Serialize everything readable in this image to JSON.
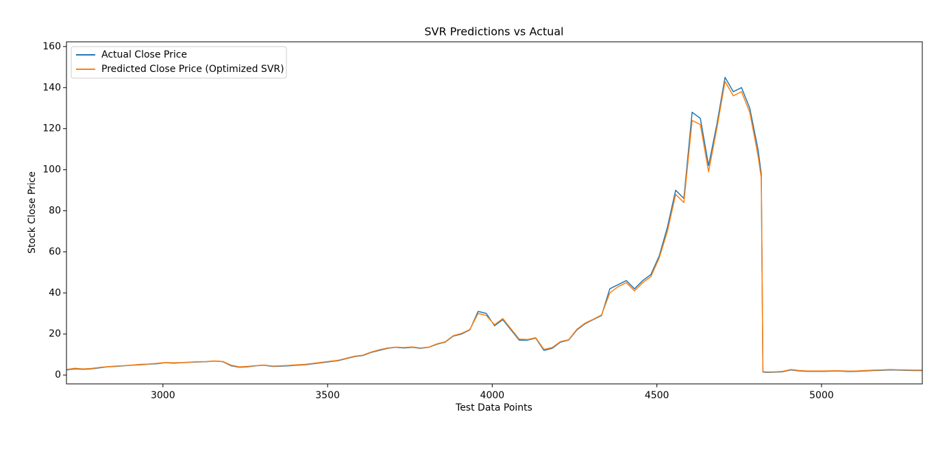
{
  "chart_data": {
    "type": "line",
    "title": "SVR Predictions vs Actual",
    "x_label": "Test Data Points",
    "y_label": "Stock Close Price",
    "xlim": [
      2707,
      5306
    ],
    "ylim": [
      -4.3,
      162.3
    ],
    "xticks": [
      3000,
      3500,
      4000,
      4500,
      5000
    ],
    "yticks": [
      0,
      20,
      40,
      60,
      80,
      100,
      120,
      140,
      160
    ],
    "legend": "upper left",
    "grid": false,
    "x": [
      2707,
      2732,
      2757,
      2782,
      2807,
      2832,
      2857,
      2882,
      2907,
      2932,
      2957,
      2982,
      3007,
      3032,
      3057,
      3082,
      3107,
      3132,
      3157,
      3182,
      3207,
      3232,
      3257,
      3282,
      3307,
      3332,
      3357,
      3382,
      3407,
      3432,
      3457,
      3482,
      3507,
      3532,
      3557,
      3582,
      3607,
      3632,
      3657,
      3682,
      3707,
      3732,
      3757,
      3782,
      3807,
      3832,
      3857,
      3882,
      3907,
      3932,
      3957,
      3982,
      4007,
      4032,
      4057,
      4082,
      4107,
      4132,
      4157,
      4182,
      4207,
      4232,
      4257,
      4282,
      4307,
      4332,
      4357,
      4382,
      4407,
      4432,
      4457,
      4482,
      4507,
      4532,
      4557,
      4582,
      4607,
      4632,
      4657,
      4682,
      4707,
      4732,
      4757,
      4782,
      4807,
      4817,
      4822,
      4832,
      4857,
      4882,
      4907,
      4932,
      4957,
      4982,
      5007,
      5032,
      5057,
      5082,
      5107,
      5132,
      5157,
      5182,
      5207,
      5232,
      5257,
      5282,
      5306
    ],
    "series": [
      {
        "name": "Actual Close Price",
        "color": "#1f77b4",
        "values": [
          2.5,
          3,
          2.8,
          3,
          3.5,
          4,
          4.2,
          4.5,
          4.8,
          5,
          5.3,
          5.5,
          6,
          5.8,
          6,
          6.2,
          6.4,
          6.5,
          6.8,
          6.5,
          4.5,
          3.8,
          4,
          4.5,
          4.8,
          4.2,
          4.3,
          4.5,
          4.8,
          5,
          5.5,
          6,
          6.5,
          7,
          8,
          9,
          9.5,
          11,
          12,
          13,
          13.5,
          13.2,
          13.5,
          13,
          13.5,
          15,
          16,
          19,
          20,
          22,
          31,
          30,
          24,
          27,
          22,
          17,
          17,
          18,
          12,
          13,
          16,
          17,
          22,
          25,
          27,
          29,
          42,
          44,
          46,
          42,
          46,
          49,
          58,
          72,
          90,
          86,
          128,
          125,
          102,
          122,
          145,
          138,
          140,
          130,
          110,
          98,
          1.5,
          1.3,
          1.4,
          1.6,
          2.5,
          2,
          1.8,
          1.8,
          1.8,
          1.9,
          1.9,
          1.7,
          1.8,
          2,
          2.2,
          2.3,
          2.5,
          2.4,
          2.3,
          2.2,
          2.2
        ]
      },
      {
        "name": "Predicted Close Price (Optimized SVR)",
        "color": "#ff7f0e",
        "values": [
          2.7,
          3.3,
          3,
          3.2,
          3.7,
          4.1,
          4.4,
          4.6,
          4.9,
          5.2,
          5.4,
          5.7,
          6.1,
          6,
          6.1,
          6.3,
          6.5,
          6.6,
          6.9,
          6.6,
          4.8,
          4,
          4.2,
          4.6,
          4.9,
          4.4,
          4.5,
          4.7,
          5,
          5.2,
          5.7,
          6.2,
          6.7,
          7.2,
          8.2,
          9.2,
          9.7,
          11.2,
          12.3,
          13.2,
          13.6,
          13.4,
          13.7,
          13.2,
          13.6,
          15.2,
          16.2,
          19.2,
          20.3,
          22.2,
          30,
          29,
          24.5,
          27.5,
          22.5,
          17.5,
          17.3,
          18.2,
          12.5,
          13.4,
          16.3,
          17.2,
          22.3,
          25.3,
          27.2,
          29.3,
          40,
          43,
          45,
          41,
          45,
          48,
          57,
          70,
          88,
          84,
          124,
          122,
          99,
          120,
          143,
          136,
          138,
          128,
          107,
          96,
          1.7,
          1.5,
          1.6,
          1.8,
          2.7,
          2.2,
          2,
          2,
          2,
          2.1,
          2.1,
          1.9,
          2,
          2.2,
          2.4,
          2.5,
          2.7,
          2.6,
          2.5,
          2.4,
          2.4
        ]
      }
    ]
  }
}
